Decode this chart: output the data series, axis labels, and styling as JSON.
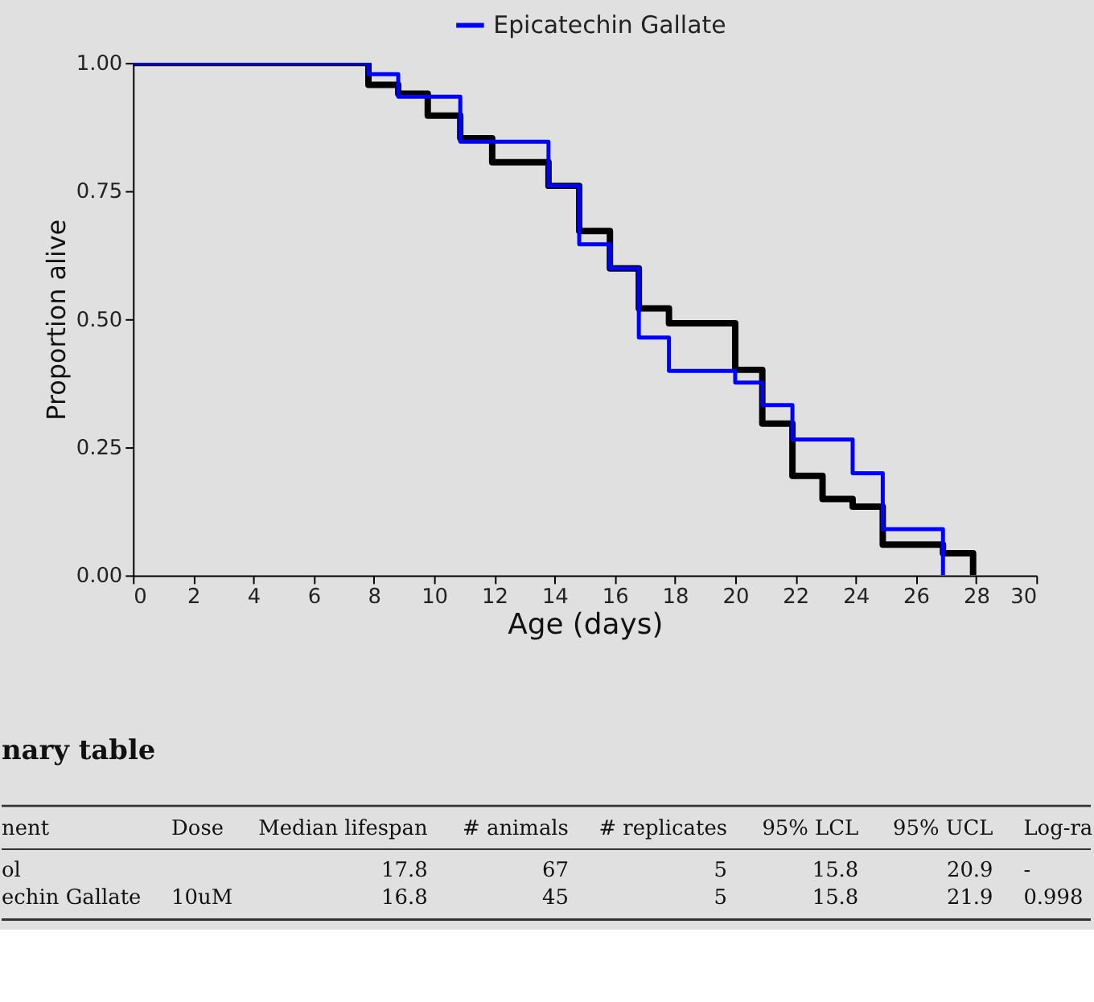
{
  "chart_data": {
    "type": "step",
    "xlabel": "Age (days)",
    "ylabel": "Proportion alive",
    "series": [
      {
        "color": "#000000",
        "x": [
          0,
          7.82,
          8.81,
          9.79,
          10.87,
          11.93,
          13.8,
          14.82,
          15.84,
          16.8,
          17.8,
          20.0,
          20.9,
          21.9,
          22.9,
          23.9,
          24.9,
          26.9,
          27.9
        ],
        "values": [
          1.0,
          0.957,
          0.94,
          0.897,
          0.853,
          0.806,
          0.76,
          0.672,
          0.599,
          0.521,
          0.492,
          0.401,
          0.296,
          0.194,
          0.149,
          0.134,
          0.06,
          0.043,
          0.0
        ]
      },
      {
        "name": "Epicatechin Gallate",
        "color": "#0000ff",
        "x": [
          0,
          7.82,
          8.81,
          10.87,
          13.8,
          14.82,
          15.84,
          16.8,
          17.8,
          20.0,
          20.9,
          21.9,
          23.9,
          24.9,
          26.9
        ],
        "values": [
          1.0,
          0.978,
          0.934,
          0.846,
          0.76,
          0.646,
          0.599,
          0.464,
          0.399,
          0.376,
          0.332,
          0.265,
          0.199,
          0.09,
          0.0
        ]
      }
    ],
    "xlim": [
      0,
      30
    ],
    "xticks": [
      0,
      2,
      4,
      6,
      8,
      10,
      12,
      14,
      16,
      18,
      20,
      22,
      24,
      26,
      28,
      30
    ],
    "ylim": [
      0,
      1
    ],
    "yticks": [
      {
        "value": 0,
        "label": "0.00"
      },
      {
        "value": 0.25,
        "label": "0.25"
      },
      {
        "value": 0.5,
        "label": "0.50"
      },
      {
        "value": 0.75,
        "label": "0.75"
      },
      {
        "value": 1,
        "label": "1.00"
      }
    ],
    "legend": "top",
    "line_style": "solid",
    "marker": "none",
    "annotations": [
      "nary table",
      "nent",
      "Dose",
      "Median lifespan",
      "# animals",
      "# replicates",
      "95% LCL",
      "95% UCL",
      "Log-ra",
      "ol",
      null,
      "17.8",
      "67",
      "5",
      "15.8",
      "20.9",
      "-",
      "echin Gallate",
      "10uM",
      "16.8",
      "45",
      "5",
      "15.8",
      "21.9",
      "0.998"
    ]
  }
}
